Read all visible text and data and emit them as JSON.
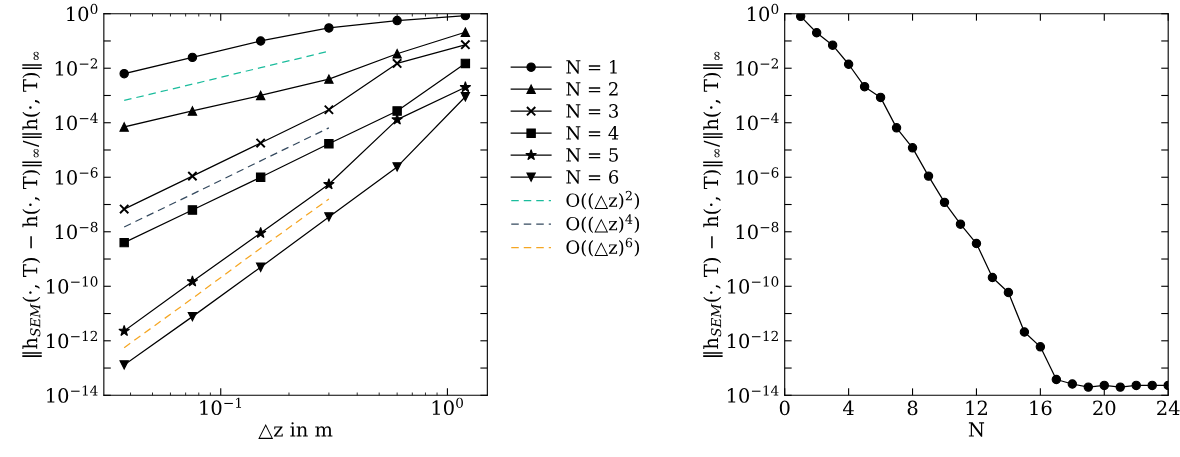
{
  "chart_data": [
    {
      "type": "line",
      "xlabel": "△z in m",
      "ylabel": "‖h$_{SEM}$(·, T) − h(·, T)‖$_{∞}$/‖h(·, T)‖$_{∞}$",
      "log": "xy",
      "grid": false,
      "legend": "right",
      "x": [
        0.0375,
        0.075,
        0.15,
        0.3,
        0.6,
        1.2
      ],
      "xlim": [
        0.0305,
        1.5
      ],
      "xticks": [
        {
          "value": 0.1,
          "label": "10$^{−1}$"
        },
        {
          "value": 1,
          "label": "10$^{0}$"
        }
      ],
      "ylim": [
        1e-14,
        1
      ],
      "yticks": [
        {
          "value": 1e-14,
          "label": "10$^{−14}$"
        },
        {
          "value": 1e-13,
          "label": null
        },
        {
          "value": 1e-12,
          "label": "10$^{−12}$"
        },
        {
          "value": 1e-11,
          "label": null
        },
        {
          "value": 1e-10,
          "label": "10$^{−10}$"
        },
        {
          "value": 1e-09,
          "label": null
        },
        {
          "value": 1e-08,
          "label": "10$^{−8}$"
        },
        {
          "value": 1e-07,
          "label": null
        },
        {
          "value": 1e-06,
          "label": "10$^{−6}$"
        },
        {
          "value": 1e-05,
          "label": null
        },
        {
          "value": 0.0001,
          "label": "10$^{−4}$"
        },
        {
          "value": 0.001,
          "label": null
        },
        {
          "value": 0.01,
          "label": "10$^{−2}$"
        },
        {
          "value": 0.1,
          "label": null
        },
        {
          "value": 1,
          "label": "10$^{0}$"
        }
      ],
      "series": [
        {
          "name": "N = 1",
          "color": "#000000",
          "marker": "circle",
          "line_style": "solid",
          "values": [
            0.0063,
            0.025,
            0.1,
            0.3,
            0.56,
            0.85
          ]
        },
        {
          "name": "N = 2",
          "color": "#000000",
          "marker": "triangle",
          "line_style": "solid",
          "values": [
            7e-05,
            0.00027,
            0.001,
            0.004,
            0.034,
            0.21
          ]
        },
        {
          "name": "N = 3",
          "color": "#000000",
          "marker": "cross",
          "line_style": "solid",
          "values": [
            6.8e-08,
            1.1e-06,
            1.8e-05,
            0.0003,
            0.015,
            0.073
          ]
        },
        {
          "name": "N = 4",
          "color": "#000000",
          "marker": "square",
          "line_style": "solid",
          "values": [
            4e-09,
            6.3e-08,
            1e-06,
            1.7e-05,
            0.00027,
            0.015
          ]
        },
        {
          "name": "N = 5",
          "color": "#000000",
          "marker": "star",
          "line_style": "solid",
          "values": [
            2.3e-12,
            1.5e-10,
            9e-09,
            5.5e-07,
            0.00013,
            0.002
          ]
        },
        {
          "name": "N = 6",
          "color": "#000000",
          "marker": "triangle_down",
          "line_style": "solid",
          "values": [
            1.3e-13,
            7.7e-12,
            5e-10,
            3.5e-08,
            2.4e-06,
            0.0009
          ]
        },
        {
          "name": "O((△z)$^{2}$)",
          "color": "#1abc9c",
          "marker": "none",
          "line_style": "dashed",
          "values": [
            0.00066,
            0.0026,
            0.0105,
            0.042,
            null,
            null
          ]
        },
        {
          "name": "O((△z)$^{4}$)",
          "color": "#34495e",
          "marker": "none",
          "line_style": "dashed",
          "values": [
            1.5e-08,
            2.4e-07,
            4e-06,
            6.5e-05,
            null,
            null
          ]
        },
        {
          "name": "O((△z)$^{6}$)",
          "color": "#f5a623",
          "marker": "none",
          "line_style": "dashed",
          "values": [
            5.6e-13,
            3.6e-11,
            2.5e-09,
            1.6e-07,
            null,
            null
          ]
        }
      ]
    },
    {
      "type": "line",
      "xlabel": "N",
      "ylabel": "‖h$_{SEM}$(·, T) − h(·, T)‖$_{∞}$/‖h(·, T)‖$_{∞}$",
      "log": "y",
      "grid": false,
      "legend": false,
      "marker": "circle",
      "line_style": "solid",
      "x": [
        1,
        2,
        3,
        4,
        5,
        6,
        7,
        8,
        9,
        10,
        11,
        12,
        13,
        14,
        15,
        16,
        17,
        18,
        19,
        20,
        21,
        22,
        23,
        24
      ],
      "xlim": [
        0,
        24
      ],
      "xticks": [
        0,
        4,
        8,
        12,
        16,
        20,
        24
      ],
      "ylim": [
        1e-14,
        1
      ],
      "yticks": [
        {
          "value": 1e-14,
          "label": "10$^{−14}$"
        },
        {
          "value": 1e-13,
          "label": null
        },
        {
          "value": 1e-12,
          "label": "10$^{−12}$"
        },
        {
          "value": 1e-11,
          "label": null
        },
        {
          "value": 1e-10,
          "label": "10$^{−10}$"
        },
        {
          "value": 1e-09,
          "label": null
        },
        {
          "value": 1e-08,
          "label": "10$^{−8}$"
        },
        {
          "value": 1e-07,
          "label": null
        },
        {
          "value": 1e-06,
          "label": "10$^{−6}$"
        },
        {
          "value": 1e-05,
          "label": null
        },
        {
          "value": 0.0001,
          "label": "10$^{−4}$"
        },
        {
          "value": 0.001,
          "label": null
        },
        {
          "value": 0.01,
          "label": "10$^{−2}$"
        },
        {
          "value": 0.1,
          "label": null
        },
        {
          "value": 1,
          "label": "10$^{0}$"
        }
      ],
      "series": [
        {
          "color": "#000000",
          "values": [
            0.8,
            0.2,
            0.07,
            0.014,
            0.0021,
            0.00085,
            6.5e-05,
            1.2e-05,
            1.1e-06,
            1.2e-07,
            1.9e-08,
            3.7e-09,
            2.1e-10,
            5.9e-11,
            2.1e-12,
            6e-13,
            3.8e-14,
            2.6e-14,
            2e-14,
            2.3e-14,
            2e-14,
            2.3e-14,
            2.3e-14,
            2.3e-14
          ]
        }
      ]
    }
  ]
}
